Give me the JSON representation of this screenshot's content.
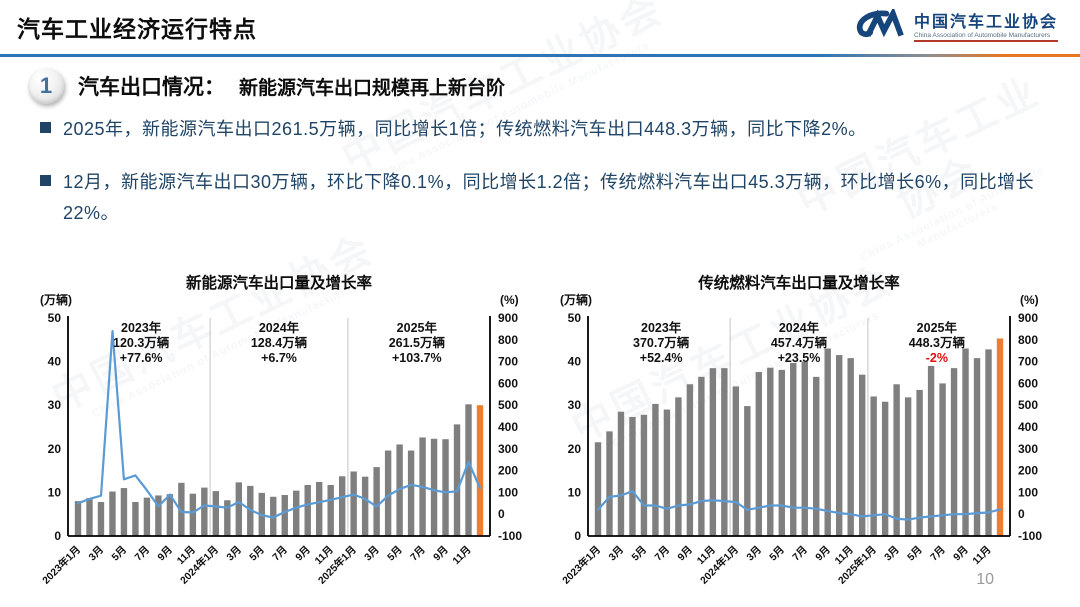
{
  "header": {
    "title": "汽车工业经济运行特点",
    "logo": {
      "cn": "中国汽车工业协会",
      "en": "China Association of Automobile Manufacturers"
    }
  },
  "section": {
    "number": "1",
    "title": "汽车出口情况：",
    "subtitle": "新能源汽车出口规模再上新台阶"
  },
  "bullets": [
    "2025年，新能源汽车出口261.5万辆，同比增长1倍；传统燃料汽车出口448.3万辆，同比下降2%。",
    "12月，新能源汽车出口30万辆，环比下降0.1%，同比增长1.2倍；传统燃料汽车出口45.3万辆，环比增长6%，同比增长22%。"
  ],
  "page_number": "10",
  "decor": {
    "watermark_cn": "中国汽车工业协会",
    "watermark_en": "China Association of Automobile Manufacturers"
  },
  "colors": {
    "bar": "#7F7F7F",
    "bar_highlight": "#ED7D31",
    "line": "#5B9BD5",
    "annotation_red": "#E01010",
    "annotation_black": "#111111",
    "axis": "#000000",
    "divider": "#b5b5b5",
    "text_navy": "#1F4466"
  },
  "chart_data": [
    {
      "type": "bar+line",
      "title": "新能源汽车出口量及增长率",
      "unit_left": "(万辆)",
      "unit_right": "(%)",
      "ylim_left": [
        0,
        50
      ],
      "yticks_left": [
        0,
        10,
        20,
        30,
        40,
        50
      ],
      "ylim_right": [
        -100,
        900
      ],
      "yticks_right": [
        -100,
        0,
        100,
        200,
        300,
        400,
        500,
        600,
        700,
        800,
        900
      ],
      "grid": false,
      "legend": false,
      "x_tick_labels": [
        "2023年1月",
        "3月",
        "5月",
        "7月",
        "9月",
        "11月",
        "2024年1月",
        "3月",
        "5月",
        "7月",
        "9月",
        "11月",
        "2025年1月",
        "3月",
        "5月",
        "7月",
        "9月",
        "11月"
      ],
      "bars_label": "出口量",
      "bars": [
        8.0,
        8.7,
        7.8,
        10.2,
        11.0,
        7.8,
        8.8,
        9.3,
        9.6,
        12.2,
        9.7,
        11.1,
        10.3,
        8.2,
        12.3,
        11.5,
        9.9,
        9.0,
        9.4,
        10.4,
        11.7,
        12.4,
        11.7,
        13.7,
        14.8,
        13.6,
        15.8,
        19.6,
        21.0,
        19.6,
        22.6,
        22.3,
        22.2,
        25.6,
        30.2,
        30.0
      ],
      "line_label": "增长率",
      "line": [
        50,
        70,
        85,
        840,
        160,
        178,
        110,
        36,
        90,
        10,
        8,
        40,
        36,
        30,
        56,
        20,
        -5,
        -15,
        10,
        30,
        45,
        55,
        66,
        78,
        90,
        70,
        35,
        85,
        115,
        135,
        125,
        110,
        100,
        105,
        240,
        120
      ],
      "highlight_last_bar": true,
      "annotations": [
        {
          "year": "2023年",
          "value": "120.3万辆",
          "growth": "+77.6%",
          "growth_red": false
        },
        {
          "year": "2024年",
          "value": "128.4万辆",
          "growth": "+6.7%",
          "growth_red": false
        },
        {
          "year": "2025年",
          "value": "261.5万辆",
          "growth": "+103.7%",
          "growth_red": false
        }
      ]
    },
    {
      "type": "bar+line",
      "title": "传统燃料汽车出口量及增长率",
      "unit_left": "(万辆)",
      "unit_right": "(%)",
      "ylim_left": [
        0,
        50
      ],
      "yticks_left": [
        0,
        10,
        20,
        30,
        40,
        50
      ],
      "ylim_right": [
        -100,
        900
      ],
      "yticks_right": [
        -100,
        0,
        100,
        200,
        300,
        400,
        500,
        600,
        700,
        800,
        900
      ],
      "grid": false,
      "legend": false,
      "x_tick_labels": [
        "2023年1月",
        "3月",
        "5月",
        "7月",
        "9月",
        "11月",
        "2024年1月",
        "3月",
        "5月",
        "7月",
        "9月",
        "11月",
        "2025年1月",
        "3月",
        "5月",
        "7月",
        "9月",
        "11月"
      ],
      "bars_label": "出口量",
      "bars": [
        21.5,
        24.0,
        28.5,
        27.3,
        27.8,
        30.3,
        29.0,
        31.8,
        34.8,
        36.5,
        38.5,
        38.5,
        34.3,
        29.8,
        37.6,
        38.6,
        38.1,
        39.7,
        40.0,
        36.5,
        43.0,
        41.5,
        40.8,
        37.0,
        32.0,
        30.8,
        34.8,
        31.8,
        33.5,
        39.0,
        35.0,
        38.5,
        43.0,
        40.8,
        42.8,
        45.3
      ],
      "line_label": "增长率",
      "line": [
        20,
        80,
        86,
        106,
        40,
        40,
        25,
        40,
        45,
        60,
        64,
        60,
        56,
        20,
        30,
        40,
        40,
        30,
        30,
        25,
        15,
        5,
        0,
        -10,
        -5,
        0,
        -20,
        -25,
        -15,
        -10,
        -5,
        0,
        0,
        5,
        8,
        22
      ],
      "highlight_last_bar": true,
      "annotations": [
        {
          "year": "2023年",
          "value": "370.7万辆",
          "growth": "+52.4%",
          "growth_red": false
        },
        {
          "year": "2024年",
          "value": "457.4万辆",
          "growth": "+23.5%",
          "growth_red": false
        },
        {
          "year": "2025年",
          "value": "448.3万辆",
          "growth": "-2%",
          "growth_red": true
        }
      ]
    }
  ]
}
